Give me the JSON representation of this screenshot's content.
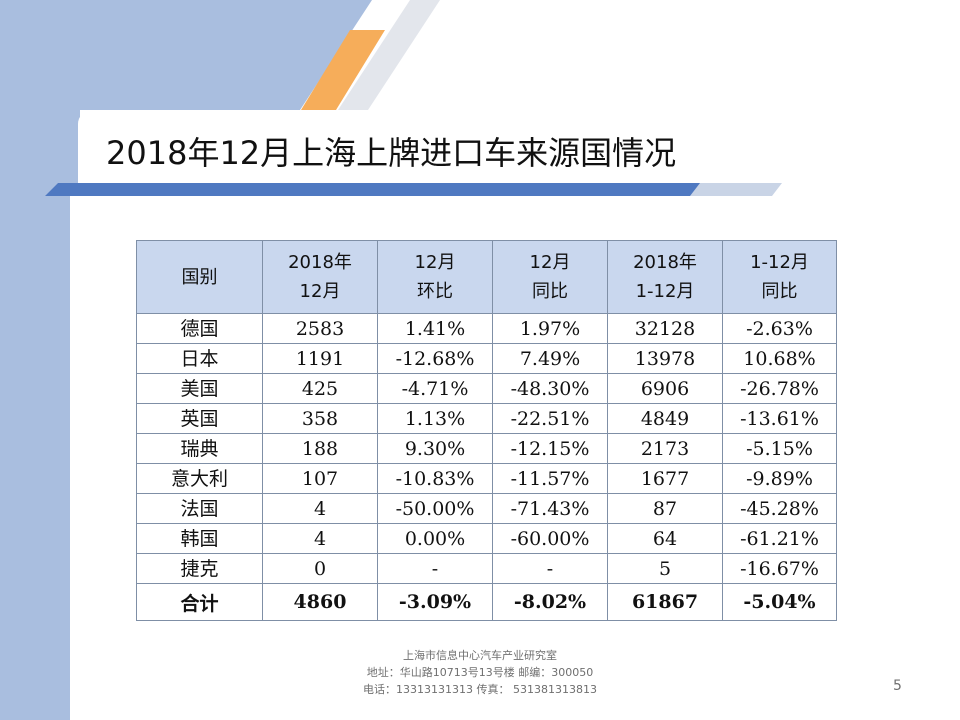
{
  "title": "2018年12月上海上牌进口车来源国情况",
  "table": {
    "headers": [
      {
        "line1": "国别",
        "line2": ""
      },
      {
        "line1": "2018年",
        "line2": "12月"
      },
      {
        "line1": "12月",
        "line2": "环比"
      },
      {
        "line1": "12月",
        "line2": "同比"
      },
      {
        "line1": "2018年",
        "line2": "1-12月"
      },
      {
        "line1": "1-12月",
        "line2": "同比"
      }
    ],
    "rows": [
      [
        "德国",
        "2583",
        "1.41%",
        "1.97%",
        "32128",
        "-2.63%"
      ],
      [
        "日本",
        "1191",
        "-12.68%",
        "7.49%",
        "13978",
        "10.68%"
      ],
      [
        "美国",
        "425",
        "-4.71%",
        "-48.30%",
        "6906",
        "-26.78%"
      ],
      [
        "英国",
        "358",
        "1.13%",
        "-22.51%",
        "4849",
        "-13.61%"
      ],
      [
        "瑞典",
        "188",
        "9.30%",
        "-12.15%",
        "2173",
        "-5.15%"
      ],
      [
        "意大利",
        "107",
        "-10.83%",
        "-11.57%",
        "1677",
        "-9.89%"
      ],
      [
        "法国",
        "4",
        "-50.00%",
        "-71.43%",
        "87",
        "-45.28%"
      ],
      [
        "韩国",
        "4",
        "0.00%",
        "-60.00%",
        "64",
        "-61.21%"
      ],
      [
        "捷克",
        "0",
        "-",
        "-",
        "5",
        "-16.67%"
      ]
    ],
    "total": [
      "合计",
      "4860",
      "-3.09%",
      "-8.02%",
      "61867",
      "-5.04%"
    ]
  },
  "footer": {
    "line1": "上海市信息中心汽车产业研究室",
    "line2": "地址：华山路10713号13号楼    邮编：300050",
    "line3": "电话：13313131313  传真： 531381313813"
  },
  "page_number": "5",
  "colors": {
    "header_fill": "#c9d7ee",
    "deco_blue": "#a9bedf",
    "deco_orange": "#f6ad5a",
    "title_bar": "#4f79c1"
  }
}
